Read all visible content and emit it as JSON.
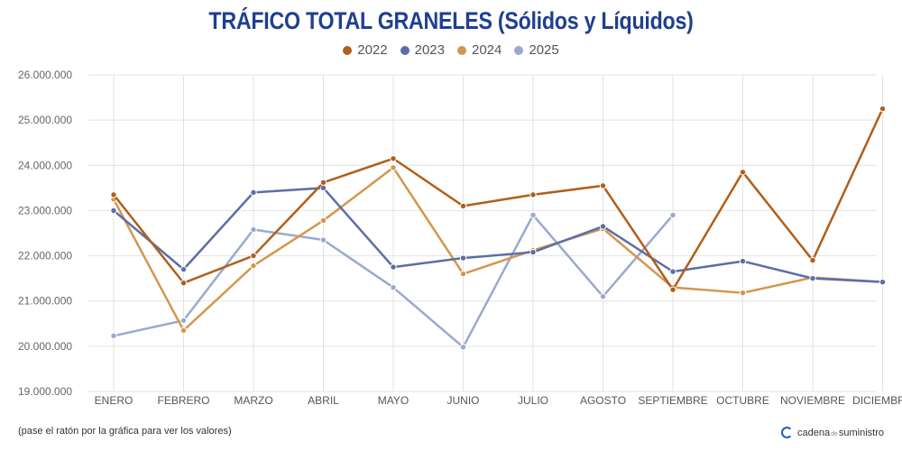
{
  "title": "TRÁFICO TOTAL GRANELES (Sólidos y Líquidos)",
  "footnote": "(pase el ratón por la gráfica para ver los valores)",
  "brand": {
    "part1": "cadena",
    "part2": "de",
    "part3": "suministro"
  },
  "legend": [
    {
      "name": "2022",
      "color": "#b05f1c"
    },
    {
      "name": "2023",
      "color": "#5b6ea6"
    },
    {
      "name": "2024",
      "color": "#d4964e"
    },
    {
      "name": "2025",
      "color": "#9aa9cf"
    }
  ],
  "chart_data": {
    "type": "line",
    "title": "TRÁFICO TOTAL GRANELES (Sólidos y Líquidos)",
    "categories": [
      "ENERO",
      "FEBRERO",
      "MARZO",
      "ABRIL",
      "MAYO",
      "JUNIO",
      "JULIO",
      "AGOSTO",
      "SEPTIEMBRE",
      "OCTUBRE",
      "NOVIEMBRE",
      "DICIEMBRE"
    ],
    "ylim": [
      19000000,
      26000000
    ],
    "yticks": [
      19000000,
      20000000,
      21000000,
      22000000,
      23000000,
      24000000,
      25000000,
      26000000
    ],
    "ytick_labels": [
      "19.000.000",
      "20.000.000",
      "21.000.000",
      "22.000.000",
      "23.000.000",
      "24.000.000",
      "25.000.000",
      "26.000.000"
    ],
    "grid": true,
    "legend_position": "top-center",
    "series": [
      {
        "name": "2022",
        "color": "#b05f1c",
        "values": [
          23350000,
          21400000,
          22000000,
          23620000,
          24150000,
          23100000,
          23350000,
          23550000,
          21250000,
          23850000,
          21900000,
          25250000
        ]
      },
      {
        "name": "2023",
        "color": "#5b6ea6",
        "values": [
          23000000,
          21700000,
          23400000,
          23500000,
          21750000,
          21950000,
          22080000,
          22650000,
          21650000,
          21880000,
          21500000,
          21420000
        ]
      },
      {
        "name": "2024",
        "color": "#d4964e",
        "values": [
          23250000,
          20350000,
          21780000,
          22780000,
          23950000,
          21600000,
          22120000,
          22600000,
          21300000,
          21180000,
          21520000,
          21420000
        ]
      },
      {
        "name": "2025",
        "color": "#9aa9cf",
        "values": [
          20230000,
          20570000,
          22580000,
          22350000,
          21300000,
          19980000,
          22900000,
          21100000,
          22900000,
          null,
          null,
          null
        ]
      }
    ]
  }
}
